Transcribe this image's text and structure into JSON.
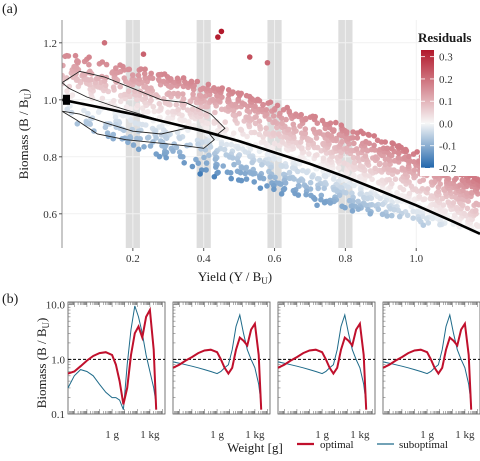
{
  "panel_a": {
    "label": "(a)",
    "xlabel_main": "Yield (Y / B",
    "xlabel_sub": "U",
    "xlabel_end": ")",
    "ylabel_main": "Biomass (B / B",
    "ylabel_sub": "U",
    "ylabel_end": ")",
    "legend_title": "Residuals"
  },
  "panel_b": {
    "label": "(b)",
    "ylabel_main": "Biomass (B / B",
    "ylabel_sub": "U",
    "ylabel_end": ")",
    "xlabel": "Weight [g]",
    "legend_optimal": "optimal",
    "legend_suboptimal": "suboptimal"
  },
  "chart_data": [
    {
      "id": "scatter",
      "type": "scatter",
      "title": "",
      "xlabel": "Yield (Y / BU)",
      "ylabel": "Biomass (B / BU)",
      "xlim": [
        0.0,
        1.18
      ],
      "ylim": [
        0.48,
        1.28
      ],
      "x_ticks": [
        0.2,
        0.4,
        0.6,
        0.8,
        1.0
      ],
      "x_tick_labels": [
        "0.2",
        "0.4",
        "0.6",
        "0.8",
        "1.0"
      ],
      "y_ticks": [
        0.6,
        0.8,
        1.0,
        1.2
      ],
      "y_tick_labels": [
        "0.6",
        "0.8",
        "1.0",
        "1.2"
      ],
      "highlight_bands_x": [
        [
          0.18,
          0.22
        ],
        [
          0.38,
          0.42
        ],
        [
          0.58,
          0.62
        ],
        [
          0.78,
          0.82
        ]
      ],
      "reference_curve": {
        "x": [
          0.0,
          0.1,
          0.2,
          0.3,
          0.4,
          0.5,
          0.6,
          0.7,
          0.8,
          0.9,
          1.0,
          1.1,
          1.18
        ],
        "y": [
          1.0,
          0.975,
          0.95,
          0.92,
          0.89,
          0.855,
          0.815,
          0.775,
          0.73,
          0.68,
          0.63,
          0.575,
          0.53
        ]
      },
      "point_cloud": {
        "upper_edge": {
          "x": [
            0.0,
            0.2,
            0.4,
            0.6,
            0.8,
            1.0,
            1.18
          ],
          "y": [
            1.17,
            1.12,
            1.06,
            0.99,
            0.91,
            0.82,
            0.72
          ]
        },
        "lower_edge": {
          "x": [
            0.0,
            0.2,
            0.4,
            0.6,
            0.8,
            1.0,
            1.18
          ],
          "y": [
            0.93,
            0.82,
            0.75,
            0.68,
            0.62,
            0.57,
            0.53
          ]
        },
        "n_points": 1600,
        "max_yield": 1.18
      },
      "outliers": [
        {
          "x": 0.12,
          "y": 1.2,
          "r": 0.2
        },
        {
          "x": 0.23,
          "y": 1.16,
          "r": 0.22
        },
        {
          "x": 0.44,
          "y": 1.22,
          "r": 0.32
        },
        {
          "x": 0.45,
          "y": 1.24,
          "r": 0.33
        },
        {
          "x": 0.53,
          "y": 1.15,
          "r": 0.25
        },
        {
          "x": 0.58,
          "y": 1.13,
          "r": 0.21
        },
        {
          "x": 0.39,
          "y": 0.74,
          "r": -0.17
        },
        {
          "x": 0.43,
          "y": 0.73,
          "r": -0.16
        },
        {
          "x": 0.56,
          "y": 0.69,
          "r": -0.14
        },
        {
          "x": 0.62,
          "y": 0.67,
          "r": -0.13
        },
        {
          "x": 0.72,
          "y": 0.63,
          "r": -0.12
        },
        {
          "x": 0.87,
          "y": 0.6,
          "r": -0.1
        },
        {
          "x": 0.82,
          "y": 0.61,
          "r": -0.11
        },
        {
          "x": 1.02,
          "y": 0.56,
          "r": -0.06
        },
        {
          "x": 1.12,
          "y": 0.56,
          "r": 0.01
        }
      ],
      "contours": [
        {
          "x": [
            0.0,
            0.05,
            0.12,
            0.2,
            0.28,
            0.35,
            0.42,
            0.46,
            0.44,
            0.38,
            0.3,
            0.22,
            0.14,
            0.07,
            0.02,
            0.0
          ],
          "y": [
            1.06,
            1.1,
            1.08,
            1.04,
            1.0,
            0.99,
            0.95,
            0.9,
            0.88,
            0.9,
            0.92,
            0.95,
            0.98,
            1.01,
            1.04,
            1.06
          ]
        },
        {
          "x": [
            0.0,
            0.04,
            0.1,
            0.18,
            0.26,
            0.34,
            0.4,
            0.43,
            0.41,
            0.35,
            0.28,
            0.2,
            0.12,
            0.05,
            0.0
          ],
          "y": [
            0.96,
            0.93,
            0.88,
            0.86,
            0.85,
            0.84,
            0.83,
            0.86,
            0.89,
            0.9,
            0.88,
            0.89,
            0.92,
            0.95,
            0.96
          ]
        }
      ],
      "origin_marker": {
        "x": 0.0,
        "y": 1.0
      },
      "colorbar": {
        "title": "Residuals",
        "range": [
          -0.2,
          0.33
        ],
        "ticks": [
          0.3,
          0.2,
          0.1,
          0.0,
          -0.1,
          -0.2
        ],
        "tick_labels": [
          "0.3",
          "0.2",
          "0.1",
          "0.0",
          "-0.1",
          "-0.2"
        ],
        "colors": [
          "#2166ac",
          "#f7f7f7",
          "#b2182b"
        ]
      }
    },
    {
      "id": "spectra",
      "type": "line",
      "xlabel": "Weight [g]",
      "ylabel": "Biomass (B / BU)",
      "x_scale": "log10",
      "xlim": [
        -3.5,
        4.2
      ],
      "y_scale": "log10",
      "ylim": [
        -1.0,
        1.05
      ],
      "y_ticks": [
        0.1,
        1.0,
        10.0
      ],
      "y_tick_labels": [
        "0.1",
        "1.0",
        "10.0"
      ],
      "x_tick_positions": [
        0,
        3
      ],
      "x_tick_labels": [
        "1 g",
        "1 kg"
      ],
      "reference_line_y": 1.0,
      "series_colors": {
        "optimal": "#c0102c",
        "suboptimal": "#1f6b8a"
      },
      "legend": [
        "optimal",
        "suboptimal"
      ],
      "panels": [
        {
          "name": "panel-1",
          "optimal": {
            "x": [
              -3.5,
              -3.0,
              -2.5,
              -2.0,
              -1.5,
              -1.0,
              -0.5,
              0.0,
              0.3,
              0.6,
              0.9,
              1.2,
              1.5,
              1.8,
              2.1,
              2.4,
              2.7,
              3.0,
              3.3,
              3.5
            ],
            "y": [
              0.55,
              0.6,
              0.75,
              0.95,
              1.15,
              1.3,
              1.35,
              1.2,
              0.8,
              0.4,
              0.15,
              0.3,
              1.2,
              3.0,
              4.0,
              2.5,
              6.0,
              8.0,
              1.5,
              0.12
            ]
          },
          "suboptimal": {
            "x": [
              -3.5,
              -3.0,
              -2.5,
              -2.0,
              -1.5,
              -1.0,
              -0.5,
              0.0,
              0.3,
              0.6,
              0.9,
              1.2,
              1.5,
              1.8,
              2.1,
              2.4,
              2.7,
              3.0,
              3.3,
              3.5
            ],
            "y": [
              0.3,
              0.5,
              0.65,
              0.6,
              0.5,
              0.35,
              0.25,
              0.2,
              0.2,
              0.18,
              0.12,
              0.8,
              3.5,
              9.5,
              6.0,
              3.0,
              1.2,
              0.6,
              0.3,
              0.15
            ]
          }
        },
        {
          "name": "panel-2",
          "optimal": {
            "x": [
              -3.5,
              -3.0,
              -2.5,
              -2.0,
              -1.5,
              -1.0,
              -0.5,
              0.0,
              0.3,
              0.6,
              0.9,
              1.2,
              1.5,
              1.8,
              2.1,
              2.4,
              2.7,
              3.0,
              3.3,
              3.5
            ],
            "y": [
              0.7,
              0.8,
              0.95,
              1.1,
              1.3,
              1.45,
              1.5,
              1.35,
              1.0,
              0.7,
              0.55,
              0.7,
              1.5,
              2.5,
              2.2,
              1.8,
              3.5,
              4.5,
              1.2,
              0.12
            ]
          },
          "suboptimal": {
            "x": [
              -3.5,
              -3.0,
              -2.5,
              -2.0,
              -1.5,
              -1.0,
              -0.5,
              0.0,
              0.3,
              0.6,
              0.9,
              1.2,
              1.5,
              1.8,
              2.1,
              2.4,
              2.7,
              3.0,
              3.3,
              3.5
            ],
            "y": [
              0.9,
              0.85,
              0.8,
              0.75,
              0.7,
              0.65,
              0.6,
              0.55,
              0.6,
              0.7,
              0.8,
              1.5,
              4.0,
              6.5,
              3.0,
              1.5,
              1.0,
              0.7,
              0.35,
              0.15
            ]
          }
        },
        {
          "name": "panel-3",
          "optimal": {
            "x": [
              -3.5,
              -3.0,
              -2.5,
              -2.0,
              -1.5,
              -1.0,
              -0.5,
              0.0,
              0.3,
              0.6,
              0.9,
              1.2,
              1.5,
              1.8,
              2.1,
              2.4,
              2.7,
              3.0,
              3.3,
              3.5
            ],
            "y": [
              0.7,
              0.8,
              0.95,
              1.1,
              1.3,
              1.45,
              1.5,
              1.35,
              1.0,
              0.7,
              0.55,
              0.7,
              1.5,
              2.5,
              2.2,
              1.8,
              3.5,
              4.5,
              1.2,
              0.12
            ]
          },
          "suboptimal": {
            "x": [
              -3.5,
              -3.0,
              -2.5,
              -2.0,
              -1.5,
              -1.0,
              -0.5,
              0.0,
              0.3,
              0.6,
              0.9,
              1.2,
              1.5,
              1.8,
              2.1,
              2.4,
              2.7,
              3.0,
              3.3,
              3.5
            ],
            "y": [
              0.9,
              0.85,
              0.8,
              0.75,
              0.7,
              0.65,
              0.6,
              0.55,
              0.6,
              0.7,
              0.8,
              1.5,
              4.0,
              6.5,
              3.0,
              1.5,
              1.0,
              0.7,
              0.35,
              0.15
            ]
          }
        },
        {
          "name": "panel-4",
          "optimal": {
            "x": [
              -3.5,
              -3.0,
              -2.5,
              -2.0,
              -1.5,
              -1.0,
              -0.5,
              0.0,
              0.3,
              0.6,
              0.9,
              1.2,
              1.5,
              1.8,
              2.1,
              2.4,
              2.7,
              3.0,
              3.3,
              3.5
            ],
            "y": [
              0.7,
              0.8,
              0.95,
              1.1,
              1.3,
              1.45,
              1.5,
              1.35,
              1.0,
              0.7,
              0.55,
              0.7,
              1.5,
              2.5,
              2.2,
              1.8,
              3.5,
              4.5,
              1.2,
              0.12
            ]
          },
          "suboptimal": {
            "x": [
              -3.5,
              -3.0,
              -2.5,
              -2.0,
              -1.5,
              -1.0,
              -0.5,
              0.0,
              0.3,
              0.6,
              0.9,
              1.2,
              1.5,
              1.8,
              2.1,
              2.4,
              2.7,
              3.0,
              3.3,
              3.5
            ],
            "y": [
              0.9,
              0.85,
              0.8,
              0.75,
              0.7,
              0.65,
              0.6,
              0.55,
              0.6,
              0.7,
              0.8,
              1.5,
              4.0,
              6.5,
              3.0,
              1.5,
              1.0,
              0.7,
              0.35,
              0.15
            ]
          }
        }
      ]
    }
  ]
}
